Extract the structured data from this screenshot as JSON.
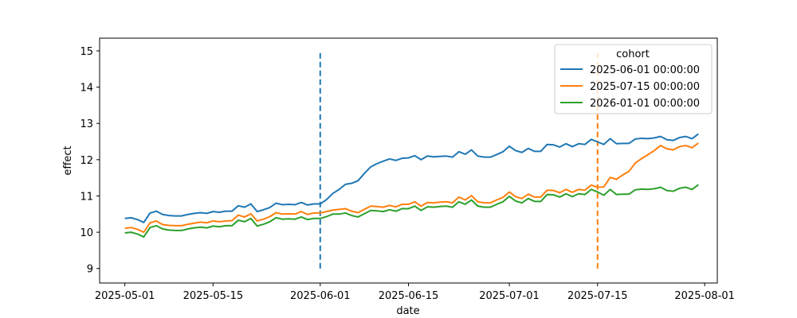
{
  "chart_data": {
    "type": "line",
    "xlabel": "date",
    "ylabel": "effect",
    "xlim": [
      "2025-04-27",
      "2025-08-03"
    ],
    "ylim": [
      8.6,
      15.35
    ],
    "x_ticks": [
      "2025-05-01",
      "2025-05-15",
      "2025-06-01",
      "2025-06-15",
      "2025-07-01",
      "2025-07-15",
      "2025-08-01"
    ],
    "y_ticks": [
      9,
      10,
      11,
      12,
      13,
      14,
      15
    ],
    "legend": {
      "title": "cohort",
      "position": "top-right"
    },
    "x": [
      "2025-05-01",
      "2025-05-02",
      "2025-05-03",
      "2025-05-04",
      "2025-05-05",
      "2025-05-06",
      "2025-05-07",
      "2025-05-08",
      "2025-05-09",
      "2025-05-10",
      "2025-05-11",
      "2025-05-12",
      "2025-05-13",
      "2025-05-14",
      "2025-05-15",
      "2025-05-16",
      "2025-05-17",
      "2025-05-18",
      "2025-05-19",
      "2025-05-20",
      "2025-05-21",
      "2025-05-22",
      "2025-05-23",
      "2025-05-24",
      "2025-05-25",
      "2025-05-26",
      "2025-05-27",
      "2025-05-28",
      "2025-05-29",
      "2025-05-30",
      "2025-05-31",
      "2025-06-01",
      "2025-06-02",
      "2025-06-03",
      "2025-06-04",
      "2025-06-05",
      "2025-06-06",
      "2025-06-07",
      "2025-06-08",
      "2025-06-09",
      "2025-06-10",
      "2025-06-11",
      "2025-06-12",
      "2025-06-13",
      "2025-06-14",
      "2025-06-15",
      "2025-06-16",
      "2025-06-17",
      "2025-06-18",
      "2025-06-19",
      "2025-06-20",
      "2025-06-21",
      "2025-06-22",
      "2025-06-23",
      "2025-06-24",
      "2025-06-25",
      "2025-06-26",
      "2025-06-27",
      "2025-06-28",
      "2025-06-29",
      "2025-06-30",
      "2025-07-01",
      "2025-07-02",
      "2025-07-03",
      "2025-07-04",
      "2025-07-05",
      "2025-07-06",
      "2025-07-07",
      "2025-07-08",
      "2025-07-09",
      "2025-07-10",
      "2025-07-11",
      "2025-07-12",
      "2025-07-13",
      "2025-07-14",
      "2025-07-15",
      "2025-07-16",
      "2025-07-17",
      "2025-07-18",
      "2025-07-19",
      "2025-07-20",
      "2025-07-21",
      "2025-07-22",
      "2025-07-23",
      "2025-07-24",
      "2025-07-25",
      "2025-07-26",
      "2025-07-27",
      "2025-07-28",
      "2025-07-29",
      "2025-07-30",
      "2025-07-31"
    ],
    "series": [
      {
        "name": "2025-06-01 00:00:00",
        "color": "#1f77b4",
        "values": [
          10.38,
          10.4,
          10.35,
          10.27,
          10.53,
          10.58,
          10.49,
          10.46,
          10.45,
          10.45,
          10.49,
          10.52,
          10.54,
          10.52,
          10.57,
          10.55,
          10.58,
          10.58,
          10.73,
          10.69,
          10.78,
          10.57,
          10.62,
          10.68,
          10.8,
          10.76,
          10.77,
          10.76,
          10.82,
          10.75,
          10.78,
          10.78,
          10.9,
          11.07,
          11.18,
          11.32,
          11.35,
          11.42,
          11.62,
          11.8,
          11.89,
          11.96,
          12.02,
          11.98,
          12.04,
          12.05,
          12.11,
          12.0,
          12.1,
          12.08,
          12.09,
          12.1,
          12.07,
          12.22,
          12.15,
          12.27,
          12.1,
          12.07,
          12.07,
          12.14,
          12.22,
          12.37,
          12.25,
          12.2,
          12.31,
          12.23,
          12.23,
          12.42,
          12.41,
          12.35,
          12.44,
          12.36,
          12.44,
          12.42,
          12.56,
          12.49,
          12.42,
          12.58,
          12.44,
          12.45,
          12.45,
          12.57,
          12.59,
          12.58,
          12.6,
          12.64,
          12.55,
          12.53,
          12.61,
          12.64,
          12.58,
          12.71
        ]
      },
      {
        "name": "2025-07-15 00:00:00",
        "color": "#ff7f0e",
        "values": [
          10.11,
          10.13,
          10.08,
          10.0,
          10.26,
          10.31,
          10.21,
          10.19,
          10.18,
          10.18,
          10.22,
          10.25,
          10.28,
          10.26,
          10.31,
          10.29,
          10.31,
          10.32,
          10.47,
          10.42,
          10.51,
          10.31,
          10.36,
          10.43,
          10.54,
          10.5,
          10.51,
          10.5,
          10.57,
          10.49,
          10.53,
          10.53,
          10.57,
          10.61,
          10.63,
          10.65,
          10.58,
          10.54,
          10.63,
          10.72,
          10.71,
          10.69,
          10.74,
          10.7,
          10.77,
          10.77,
          10.84,
          10.72,
          10.82,
          10.81,
          10.83,
          10.84,
          10.81,
          10.97,
          10.89,
          11.01,
          10.84,
          10.81,
          10.81,
          10.89,
          10.96,
          11.11,
          10.98,
          10.93,
          11.05,
          10.97,
          10.97,
          11.16,
          11.15,
          11.09,
          11.18,
          11.1,
          11.18,
          11.16,
          11.3,
          11.24,
          11.25,
          11.51,
          11.46,
          11.58,
          11.68,
          11.91,
          12.03,
          12.14,
          12.25,
          12.39,
          12.3,
          12.27,
          12.36,
          12.39,
          12.33,
          12.46
        ]
      },
      {
        "name": "2026-01-01 00:00:00",
        "color": "#2ca02c",
        "values": [
          9.98,
          10.0,
          9.95,
          9.87,
          10.13,
          10.18,
          10.09,
          10.06,
          10.05,
          10.05,
          10.09,
          10.12,
          10.14,
          10.12,
          10.17,
          10.15,
          10.18,
          10.18,
          10.33,
          10.29,
          10.38,
          10.17,
          10.22,
          10.29,
          10.4,
          10.36,
          10.37,
          10.36,
          10.42,
          10.35,
          10.38,
          10.38,
          10.43,
          10.5,
          10.5,
          10.53,
          10.46,
          10.42,
          10.51,
          10.6,
          10.59,
          10.57,
          10.62,
          10.58,
          10.65,
          10.65,
          10.72,
          10.6,
          10.7,
          10.69,
          10.71,
          10.72,
          10.69,
          10.84,
          10.77,
          10.89,
          10.72,
          10.69,
          10.69,
          10.77,
          10.84,
          10.99,
          10.86,
          10.81,
          10.93,
          10.85,
          10.85,
          11.04,
          11.03,
          10.97,
          11.06,
          10.98,
          11.06,
          11.04,
          11.18,
          11.11,
          11.02,
          11.18,
          11.04,
          11.05,
          11.05,
          11.17,
          11.19,
          11.18,
          11.2,
          11.24,
          11.15,
          11.13,
          11.21,
          11.24,
          11.18,
          11.31
        ]
      }
    ],
    "vlines": [
      {
        "date": "2025-06-01",
        "color": "#1f77b4",
        "y0": 9,
        "y1": 15
      },
      {
        "date": "2025-07-15",
        "color": "#ff7f0e",
        "y0": 9,
        "y1": 15
      }
    ]
  }
}
